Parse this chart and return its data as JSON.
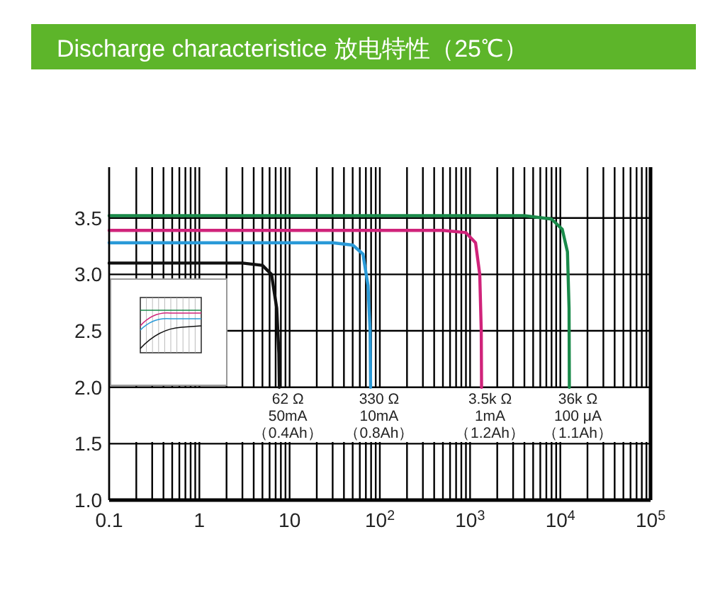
{
  "chart_data": {
    "type": "line",
    "title": "Discharge characteristice 放电特性（25℃）",
    "log": "x",
    "grid": true,
    "marker": "none",
    "line_style": "solid",
    "xlim": [
      0.1,
      100000
    ],
    "xticks": [
      {
        "value": 0.1,
        "label": "0.1"
      },
      {
        "value": 1,
        "label": "1"
      },
      {
        "value": 10,
        "label": "10"
      },
      {
        "value": 100,
        "label": "10$^{2}$"
      },
      {
        "value": 1000,
        "label": "10$^{3}$"
      },
      {
        "value": 10000,
        "label": "10$^{4}$"
      },
      {
        "value": 100000,
        "label": "10$^{5}$"
      }
    ],
    "ylim": [
      1.0,
      3.95
    ],
    "yticks": [
      {
        "value": 1.0,
        "label": "1.0"
      },
      {
        "value": 1.5,
        "label": "1.5"
      },
      {
        "value": 2.0,
        "label": "2.0"
      },
      {
        "value": 2.5,
        "label": "2.5"
      },
      {
        "value": 3.0,
        "label": "3.0"
      },
      {
        "value": 3.5,
        "label": "3.5"
      }
    ],
    "series": [
      {
        "color": "#111111",
        "x": [
          0.1,
          3,
          5,
          6.3,
          7.2,
          7.6,
          7.7
        ],
        "values": [
          3.1,
          3.1,
          3.08,
          3.0,
          2.7,
          2.3,
          2.0
        ]
      },
      {
        "color": "#2a9ad8",
        "x": [
          0.1,
          30,
          50,
          65,
          74,
          78,
          79
        ],
        "values": [
          3.28,
          3.28,
          3.26,
          3.18,
          2.9,
          2.5,
          2.0
        ]
      },
      {
        "color": "#d0237a",
        "x": [
          0.1,
          500,
          900,
          1150,
          1280,
          1330,
          1340
        ],
        "values": [
          3.39,
          3.39,
          3.37,
          3.28,
          3.0,
          2.5,
          2.0
        ]
      },
      {
        "color": "#1a8a4a",
        "x": [
          0.1,
          4000,
          8000,
          10500,
          12000,
          12500,
          12600
        ],
        "values": [
          3.52,
          3.52,
          3.49,
          3.4,
          3.2,
          2.7,
          2.0
        ]
      }
    ],
    "annotations": [
      "62 Ω\n50mA\n（0.4Ah）",
      "330 Ω\n10mA\n（0.8Ah）",
      "3.5k Ω\n1mA\n（1.2Ah）",
      "36k Ω\n100 μA\n（1.1Ah）"
    ]
  }
}
